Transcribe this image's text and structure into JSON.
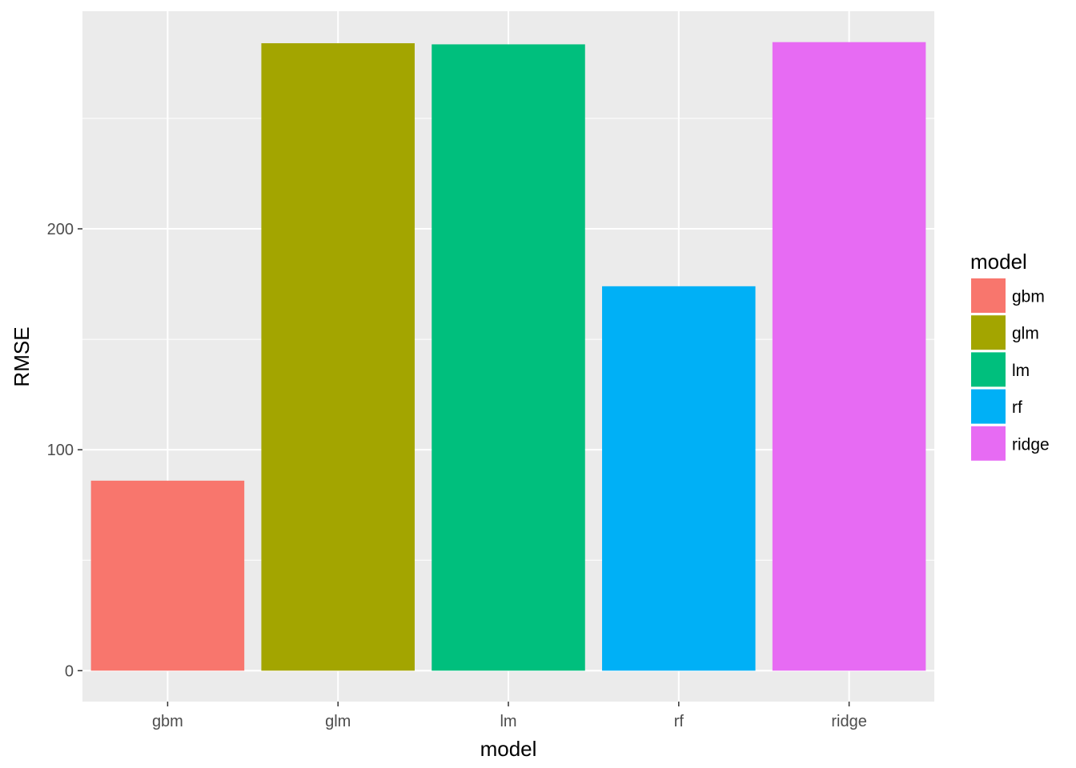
{
  "chart_data": {
    "type": "bar",
    "categories": [
      "gbm",
      "glm",
      "lm",
      "rf",
      "ridge"
    ],
    "values": [
      86,
      284,
      283.5,
      174,
      284.5
    ],
    "colors": [
      "#F8766D",
      "#A3A500",
      "#00BF7D",
      "#00B0F6",
      "#E76BF3"
    ],
    "xlabel": "model",
    "ylabel": "RMSE",
    "ylim": [
      -14,
      298.5
    ],
    "yticks": [
      0,
      100,
      200
    ],
    "ytick_labels": [
      "0",
      "100",
      "200"
    ],
    "grid": true,
    "legend": {
      "title": "model",
      "position": "right",
      "entries": [
        "gbm",
        "glm",
        "lm",
        "rf",
        "ridge"
      ]
    }
  }
}
